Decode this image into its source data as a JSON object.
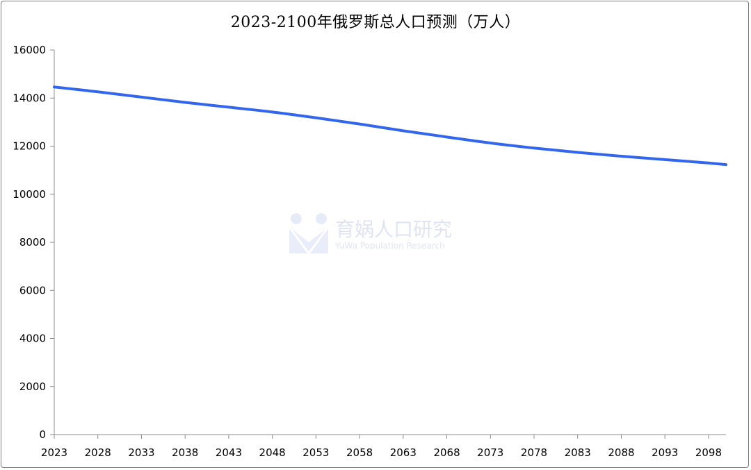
{
  "chart_data": {
    "type": "line",
    "title": "2023-2100年俄罗斯总人口预测（万人）",
    "xlabel": "",
    "ylabel": "",
    "ylim": [
      0,
      16000
    ],
    "yticks": [
      0,
      2000,
      4000,
      6000,
      8000,
      10000,
      12000,
      14000,
      16000
    ],
    "xlim": [
      2023,
      2100
    ],
    "xticks": [
      2023,
      2028,
      2033,
      2038,
      2043,
      2048,
      2053,
      2058,
      2063,
      2068,
      2073,
      2078,
      2083,
      2088,
      2093,
      2098
    ],
    "grid": false,
    "legend": "none",
    "series": [
      {
        "color": "#3366ee",
        "x": [
          2023,
          2028,
          2033,
          2038,
          2043,
          2048,
          2053,
          2058,
          2063,
          2068,
          2073,
          2078,
          2083,
          2088,
          2093,
          2098,
          2100
        ],
        "y": [
          14460,
          14260,
          14040,
          13820,
          13620,
          13420,
          13180,
          12920,
          12640,
          12380,
          12130,
          11920,
          11740,
          11580,
          11440,
          11300,
          11230
        ]
      }
    ]
  },
  "watermark": {
    "text": "育娲人口研究",
    "subtext": "YuWa Population Research"
  }
}
